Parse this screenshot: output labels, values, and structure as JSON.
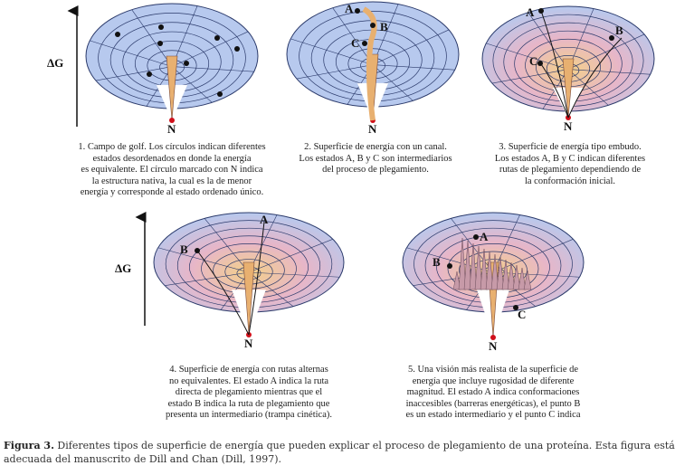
{
  "axis_label": "ΔG",
  "point_labels": {
    "A": "A",
    "B": "B",
    "C": "C",
    "N": "N"
  },
  "colors": {
    "surface": "#b7c9ee",
    "grid": "#2b3a6b",
    "native": "#d0101a",
    "funnel_warm": "#e8b070"
  },
  "panels": [
    {
      "caption": [
        "1. Campo de golf. Los círculos indican diferentes",
        "estados desordenados en donde la energía",
        "es equivalente. El círculo marcado con N indica",
        "la estructura nativa, la cual es la de menor",
        "energía y corresponde al estado ordenado único."
      ]
    },
    {
      "caption": [
        "2. Superficie de energía con un canal.",
        "Los estados A, B y C son intermediarios",
        "del proceso de plegamiento."
      ]
    },
    {
      "caption": [
        "3. Superficie de energía tipo embudo.",
        "Los estados A, B y C indican diferentes",
        "rutas de plegamiento dependiendo de",
        "la conformación inicial."
      ]
    },
    {
      "caption": [
        "4. Superficie de energía con rutas alternas",
        "no equivalentes. El estado A indica la ruta",
        "directa de plegamiento mientras que el",
        "estado B indica la ruta de plegamiento que",
        "presenta un intermediario (trampa cinética)."
      ]
    },
    {
      "caption": [
        "5. Una visión más realista de la superficie de",
        "energía que incluye rugosidad de diferente",
        "magnitud. El estado A indica conformaciones",
        "inaccesibles (barreras energéticas), el punto B",
        "es un estado intermediario y el punto C indica"
      ]
    }
  ],
  "figure_caption": {
    "label": "Figura 3.",
    "text": " Diferentes tipos de superficie de energía que pueden explicar el proceso de plegamiento de una proteína. Esta figura está adecuada del manuscrito de Dill and Chan (Dill, 1997)."
  }
}
